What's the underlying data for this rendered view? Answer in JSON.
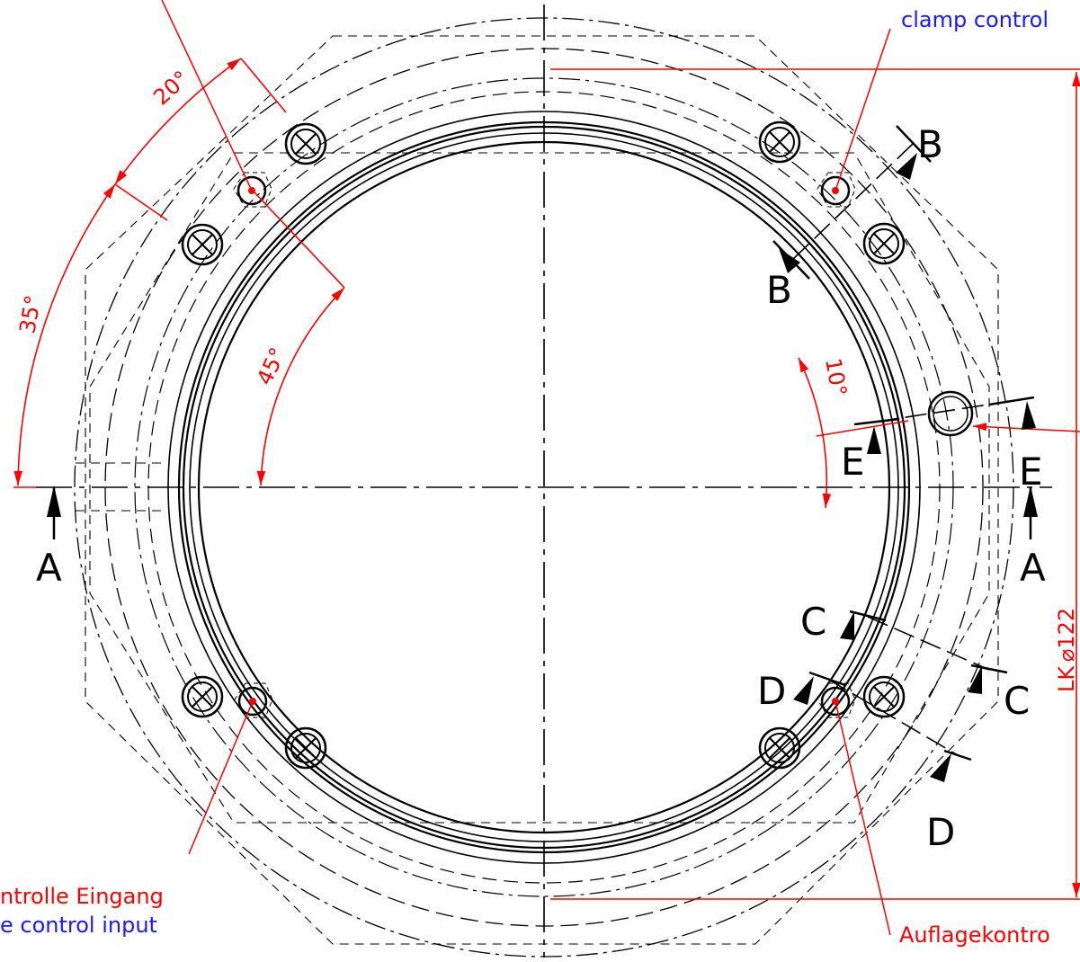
{
  "colors": {
    "outline": "#000000",
    "dimension": "#ff0000",
    "note_english": "#1a1aff"
  },
  "angles": {
    "a20": "20°",
    "a35": "35°",
    "a45": "45°",
    "a10": "10°"
  },
  "section_labels": {
    "a": "A",
    "b": "B",
    "c": "C",
    "d": "D",
    "e": "E"
  },
  "dimensions": {
    "bolt_circle": "LK ⌀122"
  },
  "notes": {
    "clamp_control_en": "clamp control",
    "input_de": "ntrolle Eingang",
    "input_en": "e control input",
    "support_de": "Auflagekontro"
  },
  "icons": {
    "screw": "crossed-circle-icon",
    "port": "circle-port-icon",
    "section_arrow": "section-arrow-icon"
  }
}
